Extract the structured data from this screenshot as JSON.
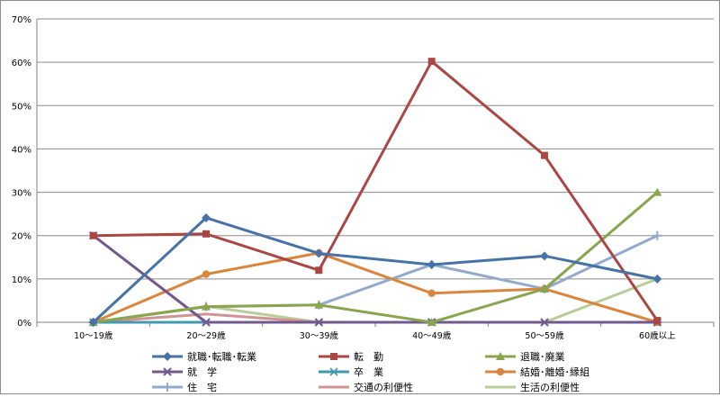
{
  "chart_data": {
    "type": "line",
    "categories": [
      "10～19歳",
      "20～29歳",
      "30～39歳",
      "40～49歳",
      "50～59歳",
      "60歳以上"
    ],
    "ylim": [
      0,
      70
    ],
    "yticks": [
      0,
      10,
      20,
      30,
      40,
      50,
      60,
      70
    ],
    "ytick_labels": [
      "0%",
      "10%",
      "20%",
      "30%",
      "40%",
      "50%",
      "60%",
      "70%"
    ],
    "grid": true,
    "legend_position": "bottom",
    "series": [
      {
        "name": "就職･転職･転業",
        "values": [
          0,
          24.1,
          15.9,
          13.3,
          15.3,
          10.0
        ],
        "color": "#4572a7",
        "marker": "diamond"
      },
      {
        "name": "転　勤",
        "values": [
          20.0,
          20.4,
          12.0,
          60.2,
          38.5,
          0.4
        ],
        "color": "#aa4643",
        "marker": "square"
      },
      {
        "name": "退職･廃業",
        "values": [
          0,
          3.6,
          4.0,
          0,
          7.7,
          30.0
        ],
        "color": "#89a54e",
        "marker": "triangle"
      },
      {
        "name": "就　学",
        "values": [
          20.0,
          0,
          0,
          0,
          0,
          0
        ],
        "color": "#71588f",
        "marker": "x"
      },
      {
        "name": "卒　業",
        "values": [
          0,
          0,
          0,
          0,
          0,
          0
        ],
        "color": "#4198af",
        "marker": "star"
      },
      {
        "name": "結婚･離婚･縁組",
        "values": [
          0,
          11.1,
          16.0,
          6.7,
          7.7,
          0
        ],
        "color": "#db843d",
        "marker": "circle"
      },
      {
        "name": "住　宅",
        "values": [
          0,
          3.6,
          4.0,
          13.3,
          7.7,
          20.0
        ],
        "color": "#93a9cf",
        "marker": "plus"
      },
      {
        "name": "交通の利便性",
        "values": [
          0,
          1.9,
          0,
          0,
          0,
          0
        ],
        "color": "#d19392",
        "marker": "none"
      },
      {
        "name": "生活の利便性",
        "values": [
          0,
          3.7,
          0,
          0,
          0,
          10.0
        ],
        "color": "#b9cd96",
        "marker": "none"
      }
    ]
  }
}
